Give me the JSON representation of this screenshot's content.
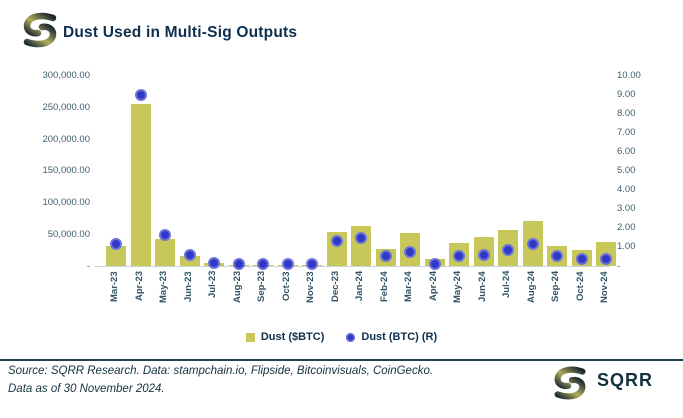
{
  "header": {
    "title": "Dust Used in Multi-Sig Outputs"
  },
  "chart_data": {
    "type": "bar",
    "subtype": "combo-bar-scatter-dual-axis",
    "title": "Dust Used in Multi-Sig Outputs",
    "grid": false,
    "legend_position": "bottom",
    "categories": [
      "Mar-23",
      "Apr-23",
      "May-23",
      "Jun-23",
      "Jul-23",
      "Aug-23",
      "Sep-23",
      "Oct-23",
      "Nov-23",
      "Dec-23",
      "Jan-24",
      "Feb-24",
      "Mar-24",
      "Apr-24",
      "May-24",
      "Jun-24",
      "Jul-24",
      "Aug-24",
      "Sep-24",
      "Oct-24",
      "Nov-24"
    ],
    "series": [
      {
        "name": "Dust ($BTC)",
        "render": "bar",
        "axis": "left",
        "values": [
          32000,
          255000,
          43000,
          15000,
          4000,
          1200,
          1200,
          800,
          1500,
          54000,
          63000,
          27000,
          52000,
          11000,
          37000,
          45000,
          57000,
          71000,
          31000,
          25000,
          38000
        ]
      },
      {
        "name": "Dust (BTC) (R)",
        "render": "scatter",
        "axis": "right",
        "values": [
          1.15,
          9.0,
          1.65,
          0.6,
          0.15,
          0.1,
          0.1,
          0.1,
          0.1,
          1.3,
          1.45,
          0.5,
          0.75,
          0.1,
          0.5,
          0.6,
          0.85,
          1.15,
          0.5,
          0.35,
          0.35
        ]
      }
    ],
    "left_axis": {
      "max": 300000,
      "min": 0,
      "ticks": [
        "300,000.00",
        "250,000.00",
        "200,000.00",
        "150,000.00",
        "100,000.00",
        "50,000.00",
        "-"
      ]
    },
    "right_axis": {
      "max": 10,
      "min": 0,
      "ticks": [
        "10.00",
        "9.00",
        "8.00",
        "7.00",
        "6.00",
        "5.00",
        "4.00",
        "3.00",
        "2.00",
        "1.00",
        "-"
      ]
    }
  },
  "legend": {
    "bar_label": "Dust ($BTC)",
    "dot_label": "Dust (BTC) (R)"
  },
  "footer": {
    "line1": "Source: SQRR Research. Data: stampchain.io, Flipside, Bitcoinvisuals, CoinGecko.",
    "line2": "Data as of 30 November 2024.",
    "brand": "SQRR"
  },
  "icons": {
    "brand_mark": "sqrr-s-logo-icon"
  },
  "colors": {
    "bar": "#c8c75a",
    "dot_core": "#3138c6",
    "dot_halo": "#6b74d9",
    "title_text": "#0d2f4e",
    "axis_text": "#3d5f70",
    "footer_text": "#14323f"
  }
}
